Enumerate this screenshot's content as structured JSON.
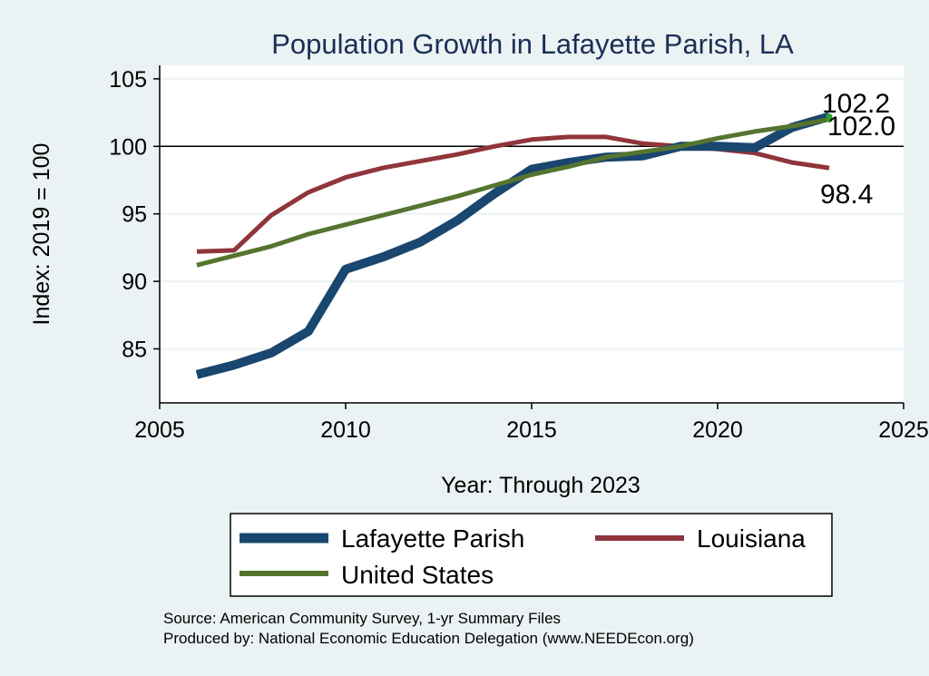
{
  "chart_data": {
    "type": "line",
    "title": "Population Growth in Lafayette Parish, LA",
    "xlabel": "Year: Through 2023",
    "ylabel": "Index: 2019 = 100",
    "xlim": [
      2005,
      2025
    ],
    "ylim": [
      81,
      106
    ],
    "xticks": [
      2005,
      2010,
      2015,
      2020,
      2025
    ],
    "yticks": [
      85,
      90,
      95,
      100,
      105
    ],
    "reference_line": 100,
    "grid": true,
    "x": [
      2006,
      2007,
      2008,
      2009,
      2010,
      2011,
      2012,
      2013,
      2014,
      2015,
      2016,
      2017,
      2018,
      2019,
      2020,
      2021,
      2022,
      2023
    ],
    "series": [
      {
        "name": "Lafayette Parish",
        "color": "#1a476f",
        "width": 10,
        "values": [
          83.1,
          83.8,
          84.7,
          86.3,
          90.9,
          91.8,
          92.9,
          94.5,
          96.5,
          98.3,
          98.8,
          99.2,
          99.3,
          100.0,
          100.0,
          99.9,
          101.4,
          102.2
        ],
        "end_label": "102.2"
      },
      {
        "name": "Louisiana",
        "color": "#90353b",
        "width": 5,
        "values": [
          92.2,
          92.3,
          94.9,
          96.6,
          97.7,
          98.4,
          98.9,
          99.4,
          100.0,
          100.5,
          100.7,
          100.7,
          100.2,
          100.0,
          99.8,
          99.5,
          98.8,
          98.4
        ],
        "end_label": "98.4"
      },
      {
        "name": "United States",
        "color": "#55752f",
        "width": 5,
        "values": [
          91.2,
          91.9,
          92.6,
          93.5,
          94.2,
          94.9,
          95.6,
          96.3,
          97.1,
          97.9,
          98.5,
          99.2,
          99.6,
          100.0,
          100.6,
          101.1,
          101.5,
          102.0
        ],
        "end_label": "102.0"
      }
    ],
    "legend": {
      "position": "bottom",
      "entries": [
        "Lafayette Parish",
        "Louisiana",
        "United States"
      ]
    },
    "end_marker_color": "#2ca02c",
    "source_lines": [
      "Source: American Community Survey, 1-yr Summary Files",
      "Produced by: National Economic Education Delegation (www.NEEDEcon.org)"
    ]
  }
}
